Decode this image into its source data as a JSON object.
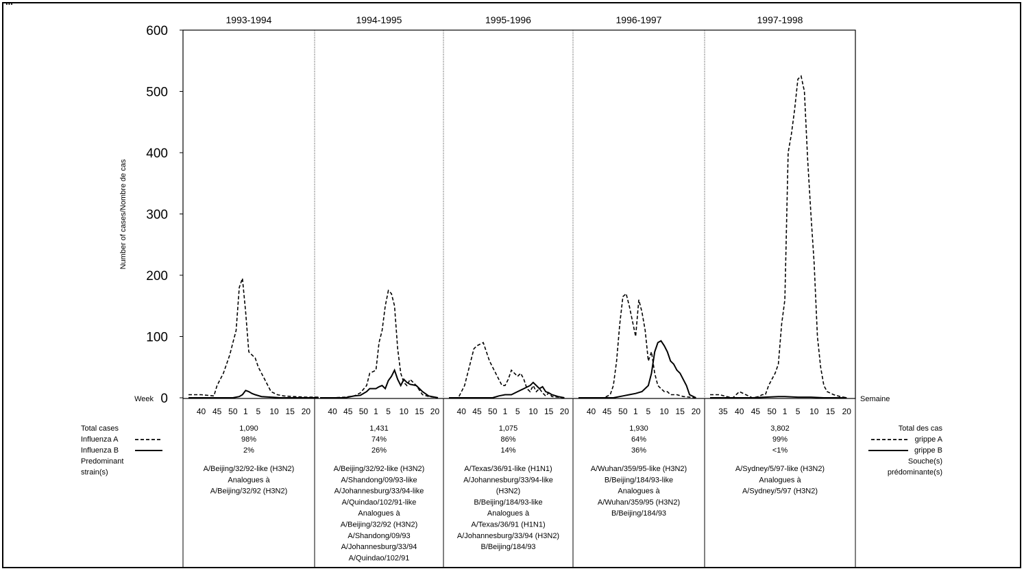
{
  "chart_data": {
    "type": "line",
    "title_partial": "...",
    "ylabel": "Number of cases/Nombre de cas",
    "ylim": [
      0,
      600
    ],
    "yticks": [
      0,
      100,
      200,
      300,
      400,
      500,
      600
    ],
    "y_zero_label": "Week",
    "x_right_label": "Semaine",
    "grid": false,
    "panels": [
      {
        "season": "1993-1994",
        "xticks": [
          "40",
          "45",
          "50",
          "1",
          "5",
          "10",
          "15",
          "20"
        ],
        "total": "1,090",
        "influenza_a": "98%",
        "influenza_b": "2%",
        "strains": [
          "A/Beijing/32/92-like (H3N2)",
          "Analogues à",
          "A/Beijing/32/92 (H3N2)"
        ],
        "series": [
          {
            "name": "Influenza A",
            "x": [
              36,
              40,
              44,
              45,
              47,
              49,
              50,
              51,
              52,
              53,
              1,
              2,
              3,
              4,
              5,
              7,
              9,
              11,
              13,
              16,
              20,
              24
            ],
            "values": [
              5,
              5,
              3,
              20,
              40,
              70,
              90,
              110,
              180,
              195,
              140,
              75,
              70,
              65,
              50,
              30,
              10,
              5,
              3,
              2,
              1,
              1
            ]
          },
          {
            "name": "Influenza B",
            "x": [
              36,
              40,
              44,
              47,
              50,
              52,
              53,
              1,
              2,
              3,
              4,
              6,
              9,
              12,
              16,
              24
            ],
            "values": [
              0,
              0,
              0,
              0,
              0,
              2,
              5,
              12,
              10,
              7,
              5,
              2,
              1,
              0,
              0,
              0
            ]
          }
        ]
      },
      {
        "season": "1994-1995",
        "xticks": [
          "40",
          "45",
          "50",
          "1",
          "5",
          "10",
          "15",
          "20"
        ],
        "total": "1,431",
        "influenza_a": "74%",
        "influenza_b": "26%",
        "strains": [
          "A/Beijing/32/92-like (H3N2)",
          "A/Shandong/09/93-like",
          "A/Johannesburg/33/94-like",
          "A/Quindao/102/91-like",
          "Analogues à",
          "A/Beijing/32/92 (H3N2)",
          "A/Shandong/09/93",
          "A/Johannesburg/33/94",
          "A/Quindao/102/91"
        ],
        "series": [
          {
            "name": "Influenza A",
            "x": [
              36,
              40,
              44,
              47,
              49,
              51,
              52,
              1,
              2,
              3,
              4,
              5,
              6,
              7,
              8,
              9,
              10,
              11,
              12,
              14,
              16,
              18,
              21
            ],
            "values": [
              0,
              0,
              1,
              3,
              8,
              20,
              40,
              45,
              90,
              110,
              150,
              175,
              170,
              150,
              80,
              40,
              25,
              20,
              30,
              20,
              5,
              2,
              0
            ]
          },
          {
            "name": "Influenza B",
            "x": [
              36,
              40,
              44,
              47,
              49,
              51,
              52,
              1,
              2,
              3,
              4,
              5,
              6,
              7,
              8,
              9,
              10,
              11,
              12,
              14,
              16,
              18,
              21
            ],
            "values": [
              0,
              0,
              0,
              3,
              4,
              10,
              15,
              15,
              18,
              20,
              15,
              28,
              35,
              45,
              30,
              20,
              30,
              25,
              22,
              20,
              10,
              3,
              0
            ]
          }
        ]
      },
      {
        "season": "1995-1996",
        "xticks": [
          "40",
          "45",
          "50",
          "1",
          "5",
          "10",
          "15",
          "20"
        ],
        "total": "1,075",
        "influenza_a": "86%",
        "influenza_b": "14%",
        "strains": [
          "A/Texas/36/91-like (H1N1)",
          "A/Johannesburg/33/94-like",
          "(H3N2)",
          "B/Beijing/184/93-like",
          "Analogues à",
          "A/Texas/36/91 (H1N1)",
          "A/Johannesburg/33/94 (H3N2)",
          "B/Beijing/184/93"
        ],
        "series": [
          {
            "name": "Influenza A",
            "x": [
              36,
              39,
              41,
              43,
              44,
              45,
              47,
              49,
              50,
              52,
              53,
              1,
              2,
              3,
              5,
              6,
              7,
              8,
              9,
              10,
              11,
              12,
              13,
              14,
              15,
              16,
              18,
              20
            ],
            "values": [
              0,
              0,
              20,
              60,
              80,
              85,
              90,
              60,
              50,
              30,
              20,
              20,
              30,
              45,
              35,
              40,
              30,
              15,
              10,
              20,
              10,
              15,
              8,
              3,
              8,
              2,
              1,
              0
            ]
          },
          {
            "name": "Influenza B",
            "x": [
              36,
              40,
              44,
              47,
              50,
              52,
              1,
              3,
              5,
              7,
              9,
              10,
              11,
              12,
              13,
              14,
              15,
              16,
              18,
              20
            ],
            "values": [
              0,
              0,
              0,
              0,
              0,
              3,
              5,
              5,
              10,
              15,
              20,
              25,
              20,
              15,
              18,
              10,
              8,
              5,
              2,
              0
            ]
          }
        ]
      },
      {
        "season": "1996-1997",
        "xticks": [
          "40",
          "45",
          "50",
          "1",
          "5",
          "10",
          "15",
          "20"
        ],
        "total": "1,930",
        "influenza_a": "64%",
        "influenza_b": "36%",
        "strains": [
          "A/Wuhan/359/95-like (H3N2)",
          "B/Beijing/184/93-like",
          "Analogues à",
          "A/Wuhan/359/95 (H3N2)",
          "B/Beijing/184/93"
        ],
        "series": [
          {
            "name": "Influenza A",
            "x": [
              36,
              40,
              44,
              46,
              47,
              48,
              49,
              50,
              51,
              52,
              1,
              2,
              3,
              4,
              5,
              6,
              7,
              8,
              9,
              10,
              11,
              12,
              14,
              16,
              18,
              20
            ],
            "values": [
              0,
              0,
              0,
              5,
              20,
              60,
              120,
              165,
              170,
              150,
              100,
              160,
              140,
              110,
              60,
              75,
              40,
              20,
              15,
              10,
              10,
              5,
              5,
              2,
              1,
              0
            ]
          },
          {
            "name": "Influenza B",
            "x": [
              36,
              40,
              44,
              47,
              50,
              52,
              1,
              3,
              5,
              6,
              7,
              8,
              9,
              10,
              11,
              12,
              13,
              14,
              15,
              16,
              17,
              18,
              20
            ],
            "values": [
              0,
              0,
              0,
              0,
              3,
              5,
              7,
              10,
              20,
              40,
              75,
              90,
              93,
              85,
              75,
              60,
              55,
              45,
              40,
              30,
              20,
              5,
              0
            ]
          }
        ]
      },
      {
        "season": "1997-1998",
        "xticks": [
          "35",
          "40",
          "45",
          "50",
          "1",
          "5",
          "10",
          "15",
          "20"
        ],
        "total": "3,802",
        "influenza_a": "99%",
        "influenza_b": "<1%",
        "strains": [
          "A/Sydney/5/97-like (H3N2)",
          "Analogues à",
          "A/Sydney/5/97 (H3N2)"
        ],
        "series": [
          {
            "name": "Influenza A",
            "x": [
              31,
              34,
              36,
              38,
              39,
              40,
              42,
              44,
              46,
              47,
              48,
              49,
              50,
              51,
              52,
              53,
              1,
              2,
              3,
              4,
              5,
              6,
              7,
              8,
              9,
              10,
              11,
              12,
              13,
              14,
              16,
              18,
              20
            ],
            "values": [
              5,
              5,
              2,
              0,
              5,
              10,
              5,
              0,
              2,
              5,
              5,
              20,
              30,
              40,
              55,
              120,
              160,
              400,
              430,
              470,
              520,
              525,
              500,
              390,
              300,
              220,
              100,
              50,
              20,
              10,
              5,
              2,
              0
            ]
          },
          {
            "name": "Influenza B",
            "x": [
              31,
              36,
              40,
              44,
              48,
              52,
              1,
              5,
              9,
              13,
              20
            ],
            "values": [
              0,
              0,
              0,
              0,
              1,
              2,
              2,
              1,
              1,
              0,
              0
            ]
          }
        ]
      }
    ],
    "legend": {
      "left": {
        "total": "Total cases",
        "a": "Influenza A",
        "b": "Influenza B",
        "strain": [
          "Predominant",
          "strain(s)"
        ]
      },
      "right": {
        "total": "Total des cas",
        "a": "grippe A",
        "b": "grippe B",
        "strain": [
          "Souche(s)",
          "prédominante(s)"
        ]
      }
    },
    "colors": {
      "line": "#000000",
      "background": "#ffffff"
    }
  }
}
